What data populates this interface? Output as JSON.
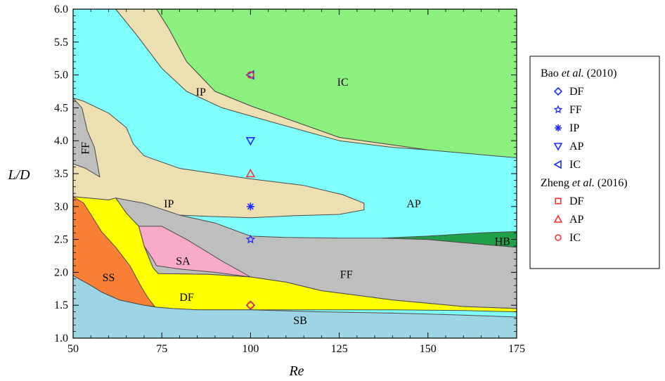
{
  "chart_data": {
    "type": "regime-map",
    "xlabel": "Re",
    "ylabel": "L/D",
    "xlim": [
      50,
      175
    ],
    "ylim": [
      1.0,
      6.0
    ],
    "x_ticks": [
      "50",
      "75",
      "100",
      "125",
      "150",
      "175"
    ],
    "y_ticks": [
      "1.0",
      "1.5",
      "2.0",
      "2.5",
      "3.0",
      "3.5",
      "4.0",
      "4.5",
      "5.0",
      "5.5",
      "6.0"
    ],
    "regions": [
      {
        "label": "IC",
        "color": "#8cf07e",
        "label_at": [
          126,
          4.9
        ],
        "polygon": [
          [
            50,
            6.0
          ],
          [
            175,
            6.0
          ],
          [
            175,
            3.74
          ],
          [
            150,
            3.86
          ],
          [
            125,
            4.05
          ],
          [
            100,
            4.53
          ],
          [
            90,
            4.75
          ],
          [
            82,
            5.2
          ],
          [
            77,
            5.7
          ],
          [
            73.5,
            6.0
          ]
        ]
      },
      {
        "label": "IP",
        "color": "#ecdfb2",
        "label_at": [
          86,
          4.75
        ],
        "polygon": [
          [
            56,
            6.0
          ],
          [
            73.5,
            6.0
          ],
          [
            77,
            5.7
          ],
          [
            82,
            5.2
          ],
          [
            90,
            4.75
          ],
          [
            100,
            4.53
          ],
          [
            125,
            4.05
          ],
          [
            150,
            3.86
          ],
          [
            140,
            3.9
          ],
          [
            125,
            4.0
          ],
          [
            105,
            4.3
          ],
          [
            92,
            4.5
          ],
          [
            82,
            4.75
          ],
          [
            75,
            5.1
          ],
          [
            68,
            5.6
          ],
          [
            62,
            6.0
          ]
        ]
      },
      {
        "label": "IP",
        "color": "#ecdfb2",
        "label_at": [
          77,
          3.05
        ],
        "polygon": [
          [
            50,
            4.65
          ],
          [
            53,
            4.6
          ],
          [
            60,
            4.42
          ],
          [
            65,
            4.2
          ],
          [
            67,
            3.95
          ],
          [
            70,
            3.77
          ],
          [
            80,
            3.58
          ],
          [
            100,
            3.42
          ],
          [
            115,
            3.32
          ],
          [
            126,
            3.18
          ],
          [
            132,
            3.05
          ],
          [
            132,
            2.95
          ],
          [
            125,
            2.88
          ],
          [
            112,
            2.86
          ],
          [
            100,
            2.83
          ],
          [
            88,
            2.85
          ],
          [
            80,
            2.87
          ],
          [
            75,
            2.92
          ],
          [
            70,
            3.05
          ],
          [
            65,
            3.08
          ],
          [
            60,
            3.1
          ],
          [
            50,
            3.15
          ]
        ]
      },
      {
        "label": "FF",
        "color": "#bebebe",
        "label_at": [
          54.5,
          3.95
        ],
        "polygon": [
          [
            50,
            4.65
          ],
          [
            52.5,
            4.5
          ],
          [
            54,
            4.15
          ],
          [
            56,
            3.9
          ],
          [
            57.5,
            3.45
          ],
          [
            53.5,
            3.58
          ],
          [
            50,
            3.65
          ]
        ]
      },
      {
        "label": "FF",
        "color": "#bebebe",
        "label_at": [
          127,
          1.98
        ],
        "polygon": [
          [
            62,
            3.13
          ],
          [
            70,
            3.05
          ],
          [
            80,
            2.87
          ],
          [
            90,
            2.75
          ],
          [
            100,
            2.55
          ],
          [
            110,
            2.53
          ],
          [
            125,
            2.52
          ],
          [
            137,
            2.52
          ],
          [
            150,
            2.5
          ],
          [
            160,
            2.45
          ],
          [
            175,
            2.38
          ],
          [
            175,
            1.45
          ],
          [
            160,
            1.48
          ],
          [
            140,
            1.58
          ],
          [
            120,
            1.72
          ],
          [
            110,
            1.85
          ],
          [
            100,
            1.93
          ],
          [
            88,
            1.97
          ],
          [
            74,
            1.98
          ],
          [
            72.5,
            2.07
          ],
          [
            70,
            2.4
          ],
          [
            68.5,
            2.7
          ],
          [
            65,
            2.9
          ]
        ]
      },
      {
        "label": "HB",
        "color": "#20a048",
        "label_at": [
          171,
          2.48
        ],
        "polygon": [
          [
            137,
            2.52
          ],
          [
            150,
            2.55
          ],
          [
            165,
            2.6
          ],
          [
            175,
            2.62
          ],
          [
            175,
            2.38
          ],
          [
            160,
            2.45
          ],
          [
            150,
            2.5
          ]
        ]
      },
      {
        "label": "SA",
        "color": "#f7abc9",
        "label_at": [
          81,
          2.18
        ],
        "polygon": [
          [
            70,
            2.4
          ],
          [
            72.5,
            2.2
          ],
          [
            73.5,
            2.1
          ],
          [
            80,
            2.05
          ],
          [
            90,
            2.0
          ],
          [
            100,
            1.93
          ],
          [
            92,
            2.17
          ],
          [
            82,
            2.5
          ],
          [
            75,
            2.7
          ],
          [
            68.5,
            2.7
          ]
        ]
      },
      {
        "label": "DF",
        "color": "#ffff00",
        "label_at": [
          82,
          1.63
        ],
        "polygon": [
          [
            50,
            3.15
          ],
          [
            60,
            3.1
          ],
          [
            62,
            3.13
          ],
          [
            65,
            2.9
          ],
          [
            68.5,
            2.7
          ],
          [
            70,
            2.4
          ],
          [
            72.5,
            2.07
          ],
          [
            74,
            1.98
          ],
          [
            88,
            1.97
          ],
          [
            100,
            1.93
          ],
          [
            110,
            1.85
          ],
          [
            120,
            1.72
          ],
          [
            140,
            1.58
          ],
          [
            160,
            1.48
          ],
          [
            175,
            1.45
          ],
          [
            175,
            1.4
          ],
          [
            160,
            1.42
          ],
          [
            140,
            1.43
          ],
          [
            100,
            1.43
          ],
          [
            85,
            1.43
          ],
          [
            78,
            1.45
          ],
          [
            73.5,
            1.47
          ],
          [
            70,
            1.5
          ],
          [
            63,
            1.58
          ],
          [
            58,
            1.7
          ],
          [
            55,
            1.8
          ],
          [
            50,
            1.95
          ]
        ]
      },
      {
        "label": "SS",
        "color": "#fa8035",
        "label_at": [
          60,
          1.93
        ],
        "polygon": [
          [
            50,
            3.15
          ],
          [
            53,
            3.05
          ],
          [
            55,
            2.88
          ],
          [
            58,
            2.62
          ],
          [
            62,
            2.38
          ],
          [
            66,
            2.1
          ],
          [
            69,
            1.8
          ],
          [
            71,
            1.62
          ],
          [
            73,
            1.48
          ],
          [
            70,
            1.5
          ],
          [
            63,
            1.58
          ],
          [
            58,
            1.7
          ],
          [
            55,
            1.8
          ],
          [
            50,
            1.95
          ]
        ]
      },
      {
        "label": "SB",
        "color": "#9dd5e4",
        "label_at": [
          114,
          1.28
        ],
        "polygon": [
          [
            50,
            1.0
          ],
          [
            175,
            1.0
          ],
          [
            175,
            1.32
          ],
          [
            160,
            1.35
          ],
          [
            140,
            1.38
          ],
          [
            120,
            1.4
          ],
          [
            100,
            1.43
          ],
          [
            85,
            1.43
          ],
          [
            78,
            1.45
          ],
          [
            73.5,
            1.47
          ],
          [
            70,
            1.5
          ],
          [
            63,
            1.58
          ],
          [
            58,
            1.7
          ],
          [
            55,
            1.8
          ],
          [
            50,
            1.95
          ]
        ]
      }
    ],
    "background_region_color": "#80ffff",
    "background_region_label": {
      "label": "AP",
      "label_at": [
        146,
        3.05
      ]
    },
    "markers": [
      {
        "group": 0,
        "item": 4,
        "x": 100,
        "y": 5.0
      },
      {
        "group": 1,
        "item": 2,
        "x": 100,
        "y": 5.0
      },
      {
        "group": 0,
        "item": 3,
        "x": 100,
        "y": 4.0
      },
      {
        "group": 1,
        "item": 1,
        "x": 100,
        "y": 3.5
      },
      {
        "group": 0,
        "item": 2,
        "x": 100,
        "y": 3.0
      },
      {
        "group": 0,
        "item": 1,
        "x": 100,
        "y": 2.5
      },
      {
        "group": 0,
        "item": 0,
        "x": 100,
        "y": 1.5
      },
      {
        "group": 1,
        "item": 2,
        "x": 100,
        "y": 1.5
      }
    ],
    "legend": {
      "placement": "right",
      "groups": [
        {
          "author": "Bao",
          "etal": "et al.",
          "year": "(2010)",
          "color": "#1f2bff",
          "items": [
            {
              "symbol": "diamond",
              "label": "DF"
            },
            {
              "symbol": "star",
              "label": "FF"
            },
            {
              "symbol": "asterisk",
              "label": "IP"
            },
            {
              "symbol": "triangle-down",
              "label": "AP"
            },
            {
              "symbol": "triangle-left",
              "label": "IC"
            }
          ]
        },
        {
          "author": "Zheng",
          "etal": "et al.",
          "year": "(2016)",
          "color": "#ff3030",
          "items": [
            {
              "symbol": "square",
              "label": "DF"
            },
            {
              "symbol": "triangle-up",
              "label": "AP"
            },
            {
              "symbol": "circle",
              "label": "IC"
            }
          ]
        }
      ]
    }
  }
}
